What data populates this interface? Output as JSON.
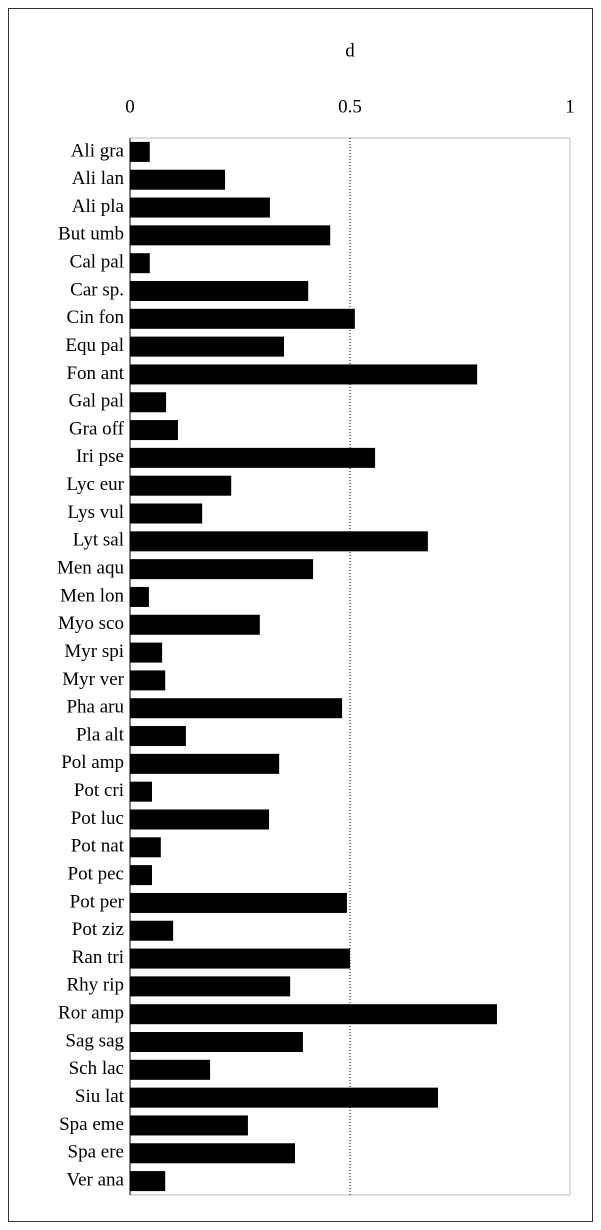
{
  "chart_data": {
    "type": "bar",
    "orientation": "horizontal",
    "title": "d",
    "categories": [
      "Ali gra",
      "Ali lan",
      "Ali pla",
      "But umb",
      "Cal pal",
      "Car sp.",
      "Cin fon",
      "Equ pal",
      "Fon ant",
      "Gal pal",
      "Gra off",
      "Iri pse",
      "Lyc eur",
      "Lys vul",
      "Lyt sal",
      "Men aqu",
      "Men lon",
      "Myo sco",
      "Myr spi",
      "Myr ver",
      "Pha aru",
      "Pla alt",
      "Pol amp",
      "Pot cri",
      "Pot luc",
      "Pot nat",
      "Pot pec",
      "Pot per",
      "Pot ziz",
      "Ran tri",
      "Rhy rip",
      "Ror amp",
      "Sag sag",
      "Sch lac",
      "Siu lat",
      "Spa eme",
      "Spa ere",
      "Ver ana"
    ],
    "values": [
      0.045,
      0.216,
      0.318,
      0.455,
      0.045,
      0.405,
      0.511,
      0.35,
      0.789,
      0.082,
      0.109,
      0.557,
      0.23,
      0.164,
      0.677,
      0.416,
      0.043,
      0.295,
      0.073,
      0.08,
      0.482,
      0.127,
      0.339,
      0.05,
      0.316,
      0.07,
      0.05,
      0.493,
      0.098,
      0.5,
      0.364,
      0.834,
      0.393,
      0.182,
      0.7,
      0.268,
      0.375,
      0.08
    ],
    "color": "#000000",
    "xlim": [
      0,
      1
    ],
    "xticks": [
      0,
      0.5,
      1
    ],
    "grid": true
  }
}
